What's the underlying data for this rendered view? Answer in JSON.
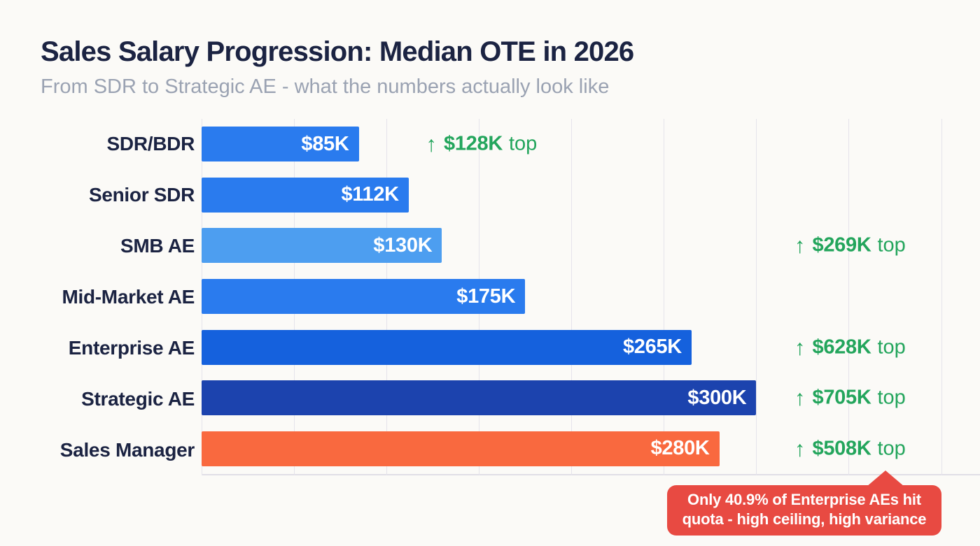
{
  "page": {
    "title": "Sales Salary Progression: Median OTE in 2026",
    "subtitle": "From SDR to Strategic AE - what the numbers actually look like",
    "background": "#fbfaf7"
  },
  "icons": {
    "arrow_up": "↑"
  },
  "colors": {
    "title_text": "#1b2342",
    "subtitle_text": "#9aa2b2",
    "category_text": "#1b2342",
    "gridline": "#e5e3eb",
    "bar_value_text": "#ffffff",
    "annotation_green": "#23a55c",
    "callout_red": "#e84a42",
    "callout_text": "#ffffff"
  },
  "chart_data": {
    "type": "bar",
    "orientation": "horizontal",
    "title": "Sales Salary Progression: Median OTE in 2026",
    "subtitle": "From SDR to Strategic AE - what the numbers actually look like",
    "xlabel": "",
    "ylabel": "",
    "unit": "thousand USD (median OTE)",
    "xlim": [
      0,
      421
    ],
    "gridline_step": 50,
    "gridlines": [
      0,
      50,
      100,
      150,
      200,
      250,
      300,
      350,
      400
    ],
    "grid_on": true,
    "categories": [
      "SDR/BDR",
      "Senior SDR",
      "SMB AE",
      "Mid-Market AE",
      "Enterprise AE",
      "Strategic AE",
      "Sales Manager"
    ],
    "values": [
      85,
      112,
      130,
      175,
      265,
      300,
      280
    ],
    "value_labels": [
      "$85K",
      "$112K",
      "$130K",
      "$175K",
      "$265K",
      "$300K",
      "$280K"
    ],
    "bar_colors": [
      "#2a7bee",
      "#2a7bee",
      "#4d9ef0",
      "#2a7bee",
      "#1561dd",
      "#1c43ae",
      "#f9693f"
    ],
    "annotations": [
      {
        "row_index": 0,
        "value_label": "$128K",
        "suffix": "top",
        "placement": "after_bar"
      },
      {
        "row_index": 2,
        "value_label": "$269K",
        "suffix": "top",
        "placement": "right_column"
      },
      {
        "row_index": 4,
        "value_label": "$628K",
        "suffix": "top",
        "placement": "right_column"
      },
      {
        "row_index": 5,
        "value_label": "$705K",
        "suffix": "top",
        "placement": "right_column"
      },
      {
        "row_index": 6,
        "value_label": "$508K",
        "suffix": "top",
        "placement": "right_column"
      }
    ],
    "callout": {
      "line1": "Only 40.9% of Enterprise AEs hit",
      "line2": "quota - high ceiling, high variance"
    }
  }
}
